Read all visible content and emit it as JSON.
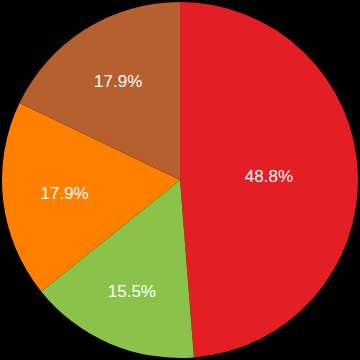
{
  "chart_data": {
    "type": "pie",
    "values": [
      48.8,
      15.5,
      17.9,
      17.9
    ],
    "value_labels": [
      "48.8%",
      "15.5%",
      "17.9%",
      "17.9%"
    ],
    "colors": [
      "#e31e24",
      "#8bc34a",
      "#ff8000",
      "#b5602e"
    ],
    "data_labels": true
  }
}
